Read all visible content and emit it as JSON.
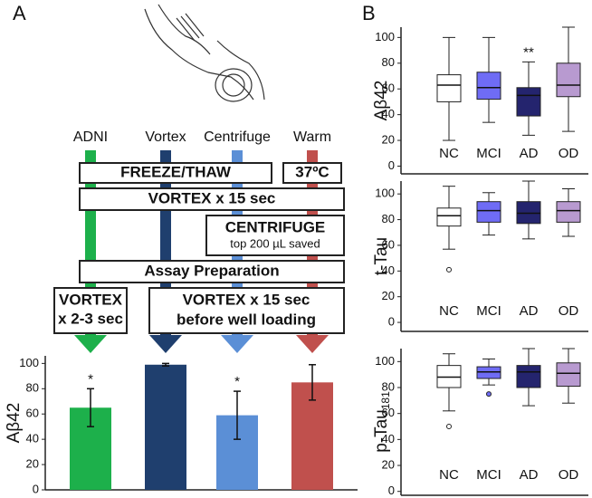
{
  "panel_labels": [
    "A",
    "B"
  ],
  "diagram": {
    "freeze": "FREEZE/THAW",
    "warm": "37ºC",
    "vortex_all": "VORTEX x 15 sec",
    "centrifuge": "CENTRIFUGE",
    "centrifuge_note": "top 200 µL saved",
    "assay": "Assay Preparation",
    "vortex_short": "VORTEX",
    "vortex_short_note": "x 2-3 sec",
    "vortex_long": "VORTEX x 15 sec",
    "vortex_long_note": "before well loading"
  },
  "chart_data": [
    {
      "type": "bar",
      "ylabel": "Aβ42",
      "categories": [
        "ADNI",
        "Vortex",
        "Centrifuge",
        "Warm"
      ],
      "values": [
        65,
        99,
        59,
        85
      ],
      "errors": [
        15,
        1,
        19,
        14
      ],
      "annotations": [
        "*",
        null,
        "*",
        null
      ],
      "colors": [
        "#1db04b",
        "#1f3f6e",
        "#5b8fd6",
        "#c0504d"
      ],
      "ylim": [
        0,
        106
      ],
      "yticks": [
        0,
        20,
        40,
        60,
        80,
        100
      ]
    },
    {
      "type": "box",
      "ylabel": "Aβ42",
      "categories": [
        "NC",
        "MCI",
        "AD",
        "OD"
      ],
      "colors": [
        "#ffffff",
        "#6f6cf5",
        "#24246e",
        "#b89ad0"
      ],
      "annotations": [
        null,
        null,
        "**",
        null
      ],
      "boxes": [
        {
          "min": 20,
          "q1": 50,
          "median": 63,
          "q3": 71,
          "max": 100,
          "outliers": []
        },
        {
          "min": 34,
          "q1": 52,
          "median": 61,
          "q3": 73,
          "max": 100,
          "outliers": []
        },
        {
          "min": 24,
          "q1": 39,
          "median": 55,
          "q3": 61,
          "max": 81,
          "outliers": []
        },
        {
          "min": 27,
          "q1": 54,
          "median": 63,
          "q3": 80,
          "max": 108,
          "outliers": []
        }
      ],
      "ylim": [
        -6,
        108
      ],
      "yticks": [
        0,
        20,
        40,
        60,
        80,
        100
      ]
    },
    {
      "type": "box",
      "ylabel": "t-Tau",
      "categories": [
        "NC",
        "MCI",
        "AD",
        "OD"
      ],
      "colors": [
        "#ffffff",
        "#6f6cf5",
        "#24246e",
        "#b89ad0"
      ],
      "boxes": [
        {
          "min": 57,
          "q1": 75,
          "median": 83,
          "q3": 89,
          "max": 106,
          "outliers": [
            41
          ]
        },
        {
          "min": 68,
          "q1": 78,
          "median": 87,
          "q3": 94,
          "max": 101,
          "outliers": []
        },
        {
          "min": 65,
          "q1": 77,
          "median": 85,
          "q3": 94,
          "max": 110,
          "outliers": []
        },
        {
          "min": 67,
          "q1": 78,
          "median": 87,
          "q3": 94,
          "max": 104,
          "outliers": []
        }
      ],
      "ylim": [
        -7,
        110
      ],
      "yticks": [
        0,
        20,
        40,
        60,
        80,
        100
      ]
    },
    {
      "type": "box",
      "ylabel": "p-Tau",
      "ylabel_sub": "181",
      "categories": [
        "NC",
        "MCI",
        "AD",
        "OD"
      ],
      "colors": [
        "#ffffff",
        "#6f6cf5",
        "#24246e",
        "#b89ad0"
      ],
      "boxes": [
        {
          "min": 62,
          "q1": 80,
          "median": 88,
          "q3": 97,
          "max": 106,
          "outliers": [
            50
          ]
        },
        {
          "min": 82,
          "q1": 87,
          "median": 92,
          "q3": 96,
          "max": 102,
          "outliers": [
            75
          ]
        },
        {
          "min": 66,
          "q1": 80,
          "median": 92,
          "q3": 97,
          "max": 110,
          "outliers": []
        },
        {
          "min": 68,
          "q1": 81,
          "median": 91,
          "q3": 99,
          "max": 110,
          "outliers": []
        }
      ],
      "ylim": [
        -3,
        110
      ],
      "yticks": [
        0,
        20,
        40,
        60,
        80,
        100
      ]
    }
  ]
}
